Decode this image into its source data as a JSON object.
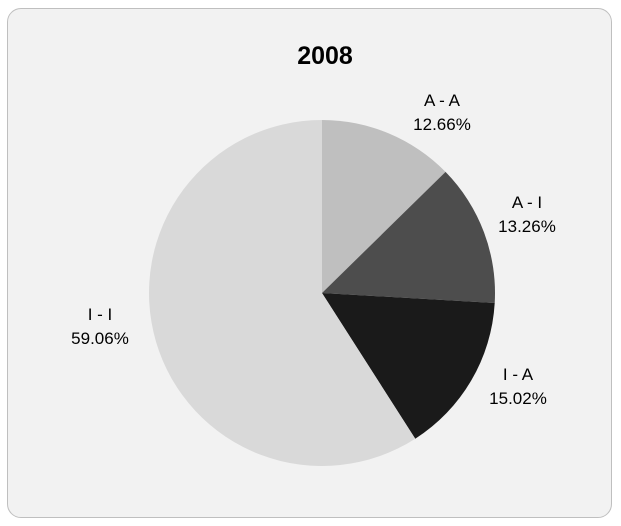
{
  "chart_data": {
    "type": "pie",
    "title": "2008",
    "start_angle_deg": 0,
    "direction": "clockwise",
    "slices": [
      {
        "category": "A - A",
        "value": 12.66,
        "label": "12.66%",
        "color": "#bfbfbf"
      },
      {
        "category": "A - I",
        "value": 13.26,
        "label": "13.26%",
        "color": "#4d4d4d"
      },
      {
        "category": "I - A",
        "value": 15.02,
        "label": "15.02%",
        "color": "#1a1a1a"
      },
      {
        "category": "I - I",
        "value": 59.06,
        "label": "59.06%",
        "color": "#d9d9d9"
      }
    ]
  }
}
